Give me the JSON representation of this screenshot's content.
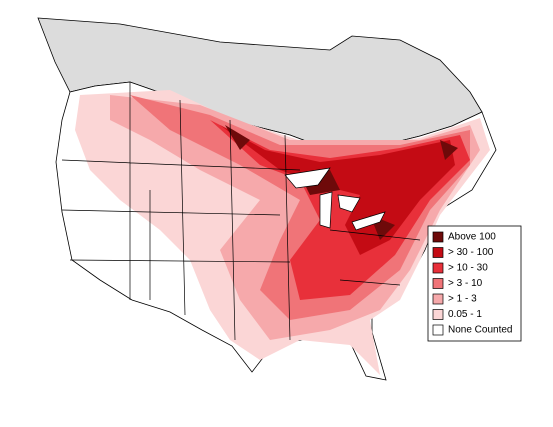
{
  "legend": {
    "items": [
      {
        "label": "Above 100",
        "color": "#6e0a0a"
      },
      {
        "label": "> 30 - 100",
        "color": "#c40b14"
      },
      {
        "label": "> 10 - 30",
        "color": "#e8303a"
      },
      {
        "label": "> 3 - 10",
        "color": "#f07478"
      },
      {
        "label": "> 1 - 3",
        "color": "#f6a9ab"
      },
      {
        "label": "0.05 - 1",
        "color": "#fbd6d6"
      },
      {
        "label": "None Counted",
        "color": "#ffffff"
      }
    ]
  }
}
